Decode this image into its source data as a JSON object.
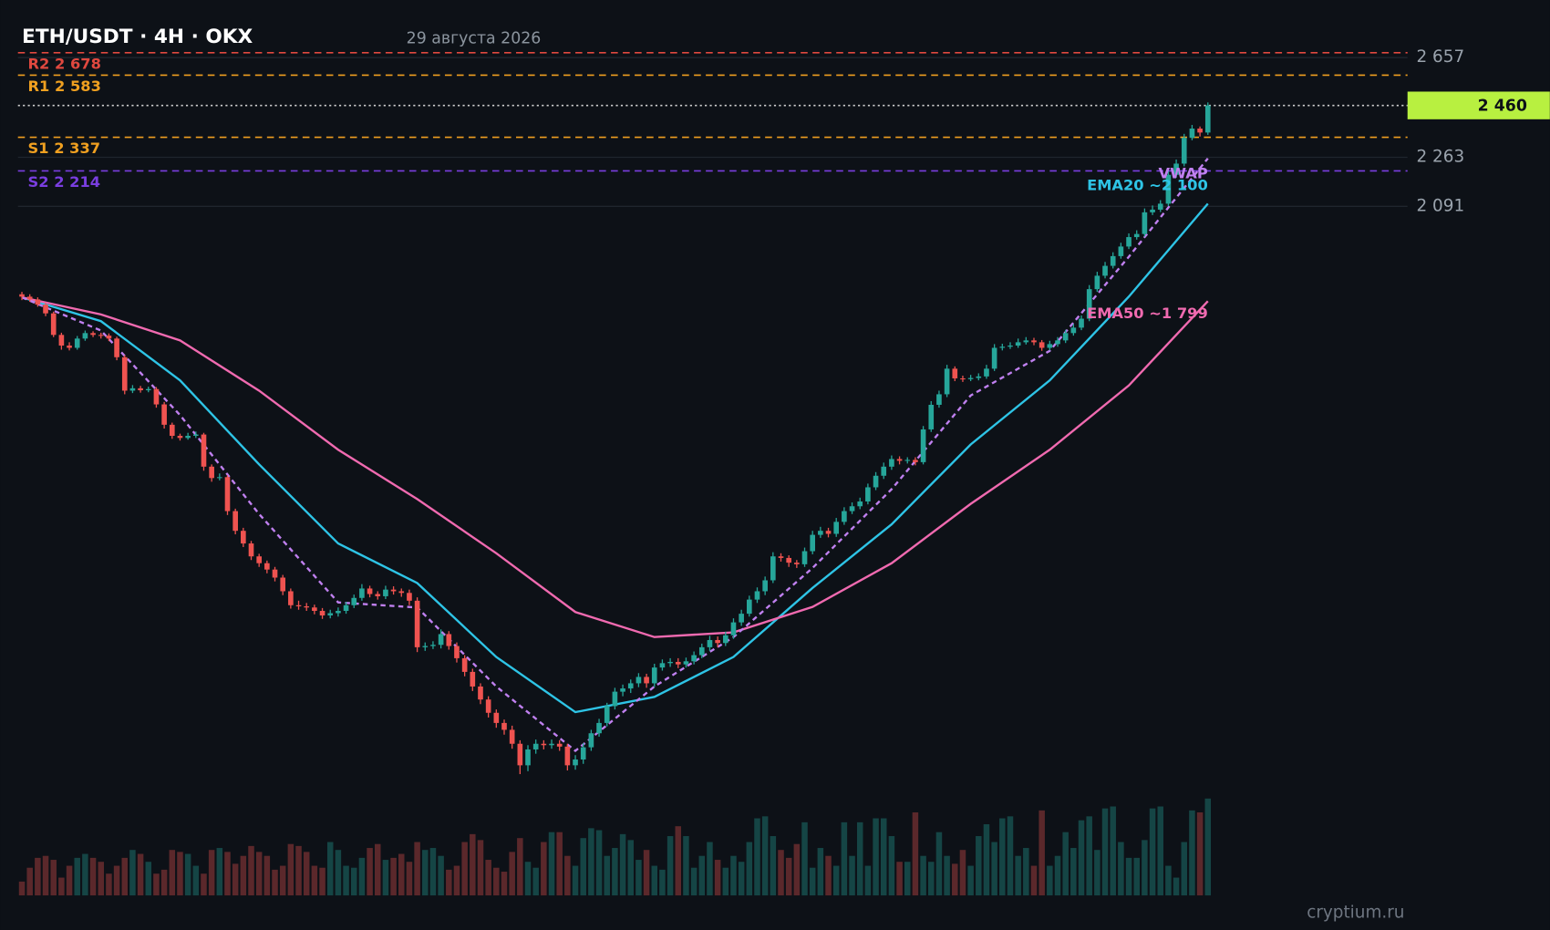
{
  "chart_data": {
    "type": "candlestick",
    "title": "ETH/USDT · 4H · OKX",
    "subtitle": "29 августа 2026",
    "watermark": "cryptium.ru",
    "log_scale": true,
    "grid": true,
    "ylim": [
      816,
      2824
    ],
    "yticks": [
      {
        "value": 2657,
        "label": "2 657"
      },
      {
        "value": 2263,
        "label": "2 263"
      },
      {
        "value": 2091,
        "label": "2 091"
      }
    ],
    "up_color": "#26a69a",
    "down_color": "#ef5350",
    "last_price": {
      "value": 2460,
      "label": "2 460",
      "color": "#b8f040"
    },
    "levels": [
      {
        "label": "R2 2 678",
        "value": 2678,
        "color": "#e0483f"
      },
      {
        "label": "R1 2 583",
        "value": 2583,
        "color": "#f0a020"
      },
      {
        "label": "S1 2 337",
        "value": 2337,
        "color": "#f0a020"
      },
      {
        "label": "S2 2 214",
        "value": 2214,
        "color": "#7a3ee0"
      }
    ],
    "series": [
      {
        "name": "EMA20 ~2 100",
        "color": "#2ec4e6",
        "dash": false,
        "x": [
          0,
          10,
          20,
          30,
          40,
          50,
          60,
          70,
          80,
          90,
          100,
          110,
          120,
          130,
          140,
          150
        ],
        "values": [
          1806,
          1738,
          1580,
          1380,
          1215,
          1140,
          1012,
          926,
          949,
          1012,
          1131,
          1253,
          1425,
          1580,
          1808,
          2100
        ]
      },
      {
        "name": "EMA50 ~1 799",
        "color": "#f06ab0",
        "dash": false,
        "x": [
          0,
          10,
          20,
          30,
          40,
          50,
          60,
          70,
          80,
          90,
          100,
          110,
          120,
          130,
          140,
          150
        ],
        "values": [
          1806,
          1757,
          1685,
          1554,
          1413,
          1305,
          1196,
          1088,
          1045,
          1053,
          1097,
          1177,
          1295,
          1413,
          1567,
          1795
        ]
      },
      {
        "name": "VWAP",
        "color": "#c080f0",
        "dash": true,
        "x": [
          0,
          10,
          20,
          30,
          40,
          50,
          60,
          70,
          80,
          90,
          100,
          110,
          120,
          130,
          140,
          150
        ],
        "values": [
          1806,
          1712,
          1494,
          1274,
          1105,
          1096,
          965,
          870,
          965,
          1045,
          1168,
          1326,
          1542,
          1657,
          1928,
          2259
        ]
      }
    ],
    "candles": [
      [
        1815,
        1822,
        1798,
        1808
      ],
      [
        1808,
        1815,
        1793,
        1800
      ],
      [
        1800,
        1806,
        1779,
        1785
      ],
      [
        1785,
        1790,
        1752,
        1760
      ],
      [
        1760,
        1765,
        1694,
        1700
      ],
      [
        1700,
        1706,
        1660,
        1671
      ],
      [
        1671,
        1680,
        1658,
        1665
      ],
      [
        1665,
        1697,
        1660,
        1690
      ],
      [
        1690,
        1712,
        1684,
        1705
      ],
      [
        1705,
        1710,
        1694,
        1700
      ],
      [
        1700,
        1706,
        1690,
        1698
      ],
      [
        1698,
        1704,
        1683,
        1690
      ],
      [
        1690,
        1695,
        1632,
        1640
      ],
      [
        1640,
        1645,
        1545,
        1554
      ],
      [
        1554,
        1568,
        1548,
        1560
      ],
      [
        1560,
        1566,
        1549,
        1555
      ],
      [
        1555,
        1564,
        1550,
        1558
      ],
      [
        1558,
        1563,
        1512,
        1520
      ],
      [
        1520,
        1526,
        1462,
        1471
      ],
      [
        1471,
        1476,
        1438,
        1445
      ],
      [
        1445,
        1450,
        1434,
        1440
      ],
      [
        1440,
        1452,
        1436,
        1445
      ],
      [
        1445,
        1455,
        1440,
        1448
      ],
      [
        1448,
        1452,
        1366,
        1375
      ],
      [
        1375,
        1380,
        1342,
        1350
      ],
      [
        1350,
        1360,
        1345,
        1352
      ],
      [
        1352,
        1356,
        1272,
        1280
      ],
      [
        1280,
        1285,
        1233,
        1240
      ],
      [
        1240,
        1246,
        1208,
        1215
      ],
      [
        1215,
        1220,
        1183,
        1190
      ],
      [
        1190,
        1195,
        1170,
        1177
      ],
      [
        1177,
        1182,
        1158,
        1165
      ],
      [
        1165,
        1170,
        1143,
        1150
      ],
      [
        1150,
        1155,
        1118,
        1125
      ],
      [
        1125,
        1130,
        1094,
        1100
      ],
      [
        1100,
        1108,
        1092,
        1098
      ],
      [
        1098,
        1104,
        1090,
        1096
      ],
      [
        1096,
        1101,
        1084,
        1090
      ],
      [
        1090,
        1095,
        1076,
        1082
      ],
      [
        1082,
        1092,
        1077,
        1086
      ],
      [
        1086,
        1096,
        1080,
        1090
      ],
      [
        1090,
        1106,
        1085,
        1100
      ],
      [
        1100,
        1119,
        1095,
        1113
      ],
      [
        1113,
        1138,
        1108,
        1130
      ],
      [
        1130,
        1135,
        1114,
        1120
      ],
      [
        1120,
        1125,
        1110,
        1116
      ],
      [
        1116,
        1135,
        1111,
        1128
      ],
      [
        1128,
        1134,
        1119,
        1125
      ],
      [
        1125,
        1130,
        1115,
        1122
      ],
      [
        1122,
        1128,
        1100,
        1108
      ],
      [
        1108,
        1114,
        1020,
        1028
      ],
      [
        1028,
        1036,
        1022,
        1030
      ],
      [
        1030,
        1038,
        1025,
        1032
      ],
      [
        1032,
        1058,
        1026,
        1050
      ],
      [
        1050,
        1055,
        1024,
        1030
      ],
      [
        1030,
        1036,
        1003,
        1010
      ],
      [
        1010,
        1015,
        981,
        988
      ],
      [
        988,
        993,
        958,
        965
      ],
      [
        965,
        970,
        938,
        945
      ],
      [
        945,
        950,
        918,
        925
      ],
      [
        925,
        930,
        903,
        910
      ],
      [
        910,
        915,
        893,
        900
      ],
      [
        900,
        906,
        873,
        880
      ],
      [
        880,
        885,
        838,
        850
      ],
      [
        850,
        878,
        842,
        872
      ],
      [
        872,
        886,
        866,
        880
      ],
      [
        880,
        885,
        872,
        878
      ],
      [
        878,
        886,
        873,
        880
      ],
      [
        880,
        885,
        870,
        876
      ],
      [
        876,
        880,
        843,
        850
      ],
      [
        850,
        864,
        844,
        858
      ],
      [
        858,
        881,
        852,
        875
      ],
      [
        875,
        900,
        870,
        895
      ],
      [
        895,
        916,
        890,
        910
      ],
      [
        910,
        940,
        905,
        935
      ],
      [
        935,
        963,
        930,
        957
      ],
      [
        957,
        968,
        950,
        962
      ],
      [
        962,
        976,
        955,
        970
      ],
      [
        970,
        986,
        964,
        980
      ],
      [
        980,
        985,
        963,
        970
      ],
      [
        970,
        1001,
        964,
        995
      ],
      [
        995,
        1008,
        990,
        1002
      ],
      [
        1002,
        1010,
        996,
        1004
      ],
      [
        1004,
        1010,
        994,
        1000
      ],
      [
        1000,
        1011,
        995,
        1005
      ],
      [
        1005,
        1021,
        1000,
        1015
      ],
      [
        1015,
        1034,
        1010,
        1028
      ],
      [
        1028,
        1047,
        1022,
        1040
      ],
      [
        1040,
        1046,
        1028,
        1035
      ],
      [
        1035,
        1054,
        1030,
        1048
      ],
      [
        1048,
        1077,
        1042,
        1070
      ],
      [
        1070,
        1092,
        1064,
        1085
      ],
      [
        1085,
        1117,
        1080,
        1110
      ],
      [
        1110,
        1132,
        1104,
        1125
      ],
      [
        1125,
        1152,
        1118,
        1145
      ],
      [
        1145,
        1198,
        1140,
        1190
      ],
      [
        1190,
        1196,
        1180,
        1187
      ],
      [
        1187,
        1192,
        1170,
        1178
      ],
      [
        1178,
        1183,
        1168,
        1175
      ],
      [
        1175,
        1207,
        1170,
        1200
      ],
      [
        1200,
        1240,
        1194,
        1232
      ],
      [
        1232,
        1248,
        1226,
        1240
      ],
      [
        1240,
        1246,
        1227,
        1234
      ],
      [
        1234,
        1266,
        1228,
        1258
      ],
      [
        1258,
        1288,
        1252,
        1280
      ],
      [
        1280,
        1298,
        1274,
        1290
      ],
      [
        1290,
        1308,
        1284,
        1300
      ],
      [
        1300,
        1338,
        1294,
        1330
      ],
      [
        1330,
        1363,
        1324,
        1355
      ],
      [
        1355,
        1384,
        1348,
        1375
      ],
      [
        1375,
        1400,
        1368,
        1392
      ],
      [
        1392,
        1398,
        1380,
        1388
      ],
      [
        1388,
        1396,
        1382,
        1390
      ],
      [
        1390,
        1396,
        1378,
        1385
      ],
      [
        1385,
        1468,
        1380,
        1460
      ],
      [
        1460,
        1528,
        1454,
        1519
      ],
      [
        1519,
        1554,
        1512,
        1545
      ],
      [
        1545,
        1620,
        1538,
        1610
      ],
      [
        1610,
        1616,
        1578,
        1585
      ],
      [
        1585,
        1592,
        1576,
        1583
      ],
      [
        1583,
        1594,
        1578,
        1586
      ],
      [
        1586,
        1598,
        1580,
        1590
      ],
      [
        1590,
        1620,
        1584,
        1610
      ],
      [
        1610,
        1675,
        1604,
        1665
      ],
      [
        1665,
        1676,
        1658,
        1668
      ],
      [
        1668,
        1680,
        1662,
        1671
      ],
      [
        1671,
        1690,
        1665,
        1680
      ],
      [
        1680,
        1694,
        1674,
        1685
      ],
      [
        1685,
        1692,
        1672,
        1680
      ],
      [
        1680,
        1686,
        1657,
        1665
      ],
      [
        1665,
        1684,
        1658,
        1675
      ],
      [
        1675,
        1694,
        1668,
        1685
      ],
      [
        1685,
        1714,
        1678,
        1705
      ],
      [
        1705,
        1730,
        1698,
        1720
      ],
      [
        1720,
        1754,
        1713,
        1745
      ],
      [
        1745,
        1842,
        1738,
        1830
      ],
      [
        1830,
        1882,
        1822,
        1870
      ],
      [
        1870,
        1912,
        1862,
        1900
      ],
      [
        1900,
        1942,
        1892,
        1930
      ],
      [
        1930,
        1972,
        1922,
        1960
      ],
      [
        1960,
        2002,
        1952,
        1990
      ],
      [
        1990,
        2012,
        1982,
        2000
      ],
      [
        2000,
        2084,
        1992,
        2071
      ],
      [
        2071,
        2094,
        2062,
        2080
      ],
      [
        2080,
        2112,
        2072,
        2100
      ],
      [
        2100,
        2214,
        2092,
        2200
      ],
      [
        2200,
        2255,
        2190,
        2240
      ],
      [
        2240,
        2350,
        2230,
        2335
      ],
      [
        2335,
        2384,
        2326,
        2370
      ],
      [
        2370,
        2378,
        2340,
        2355
      ],
      [
        2355,
        2472,
        2346,
        2460
      ]
    ],
    "volume": [
      14,
      28,
      38,
      40,
      36,
      18,
      30,
      38,
      42,
      38,
      34,
      22,
      30,
      38,
      46,
      42,
      34,
      22,
      26,
      46,
      44,
      42,
      30,
      22,
      46,
      48,
      44,
      32,
      40,
      50,
      44,
      40,
      26,
      30,
      52,
      50,
      44,
      30,
      28,
      54,
      46,
      30,
      28,
      38,
      48,
      52,
      36,
      38,
      42,
      34,
      54,
      46,
      48,
      40,
      26,
      30,
      54,
      62,
      56,
      36,
      28,
      24,
      44,
      58,
      34,
      28,
      54,
      64,
      64,
      40,
      30,
      58,
      68,
      66,
      40,
      48,
      62,
      56,
      36,
      46,
      30,
      26,
      60,
      70,
      60,
      28,
      40,
      54,
      36,
      28,
      40,
      34,
      54,
      78,
      80,
      60,
      46,
      38,
      52,
      74,
      28,
      48,
      40,
      30,
      74,
      40,
      74,
      30,
      78,
      78,
      60,
      34,
      34,
      84,
      40,
      34,
      64,
      40,
      32,
      46,
      30,
      60,
      72,
      54,
      78,
      80,
      40,
      48,
      30,
      86,
      30,
      40,
      64,
      48,
      76,
      80,
      46,
      88,
      90,
      54,
      38,
      38,
      56,
      88,
      90,
      30,
      18,
      54,
      86,
      84,
      98
    ]
  }
}
